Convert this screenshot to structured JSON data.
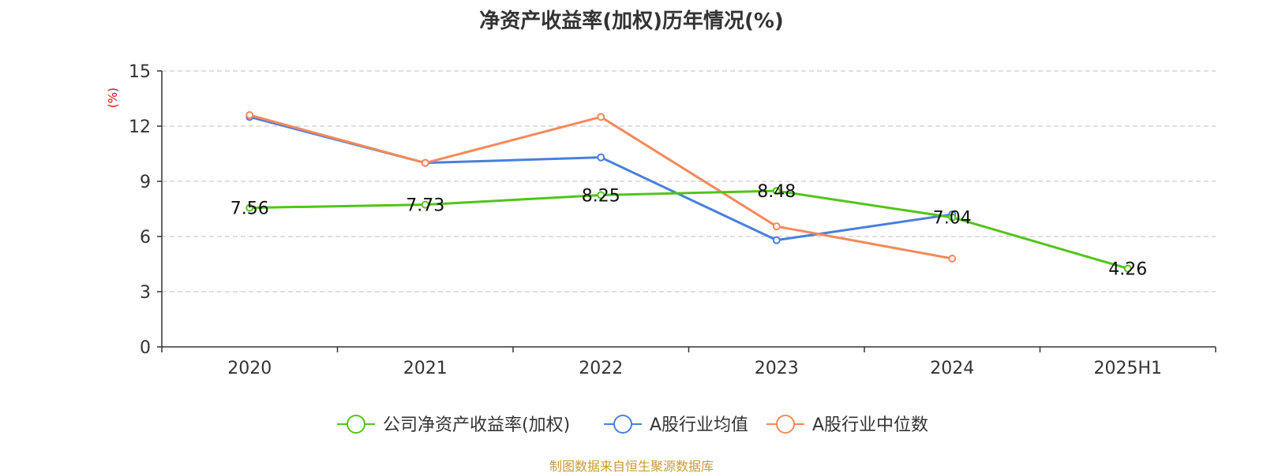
{
  "chart_data": {
    "type": "line",
    "title": "净资产收益率(加权)历年情况(%)",
    "ylabel": "(%)",
    "xlabel": "",
    "categories": [
      "2020",
      "2021",
      "2022",
      "2023",
      "2024",
      "2025H1"
    ],
    "ylim": [
      0,
      15
    ],
    "yticks": [
      0,
      3,
      6,
      9,
      12,
      15
    ],
    "grid": "horizontal-dashed",
    "legend_position": "bottom-center",
    "series": [
      {
        "name": "公司净资产收益率(加权)",
        "color": "#52c41a",
        "values": [
          7.56,
          7.73,
          8.25,
          8.48,
          7.04,
          4.26
        ],
        "labels": [
          "7.56",
          "7.73",
          "8.25",
          "8.48",
          "7.04",
          "4.26"
        ],
        "show_labels": true
      },
      {
        "name": "A股行业均值",
        "color": "#4a7fdc",
        "values": [
          12.5,
          10.0,
          10.3,
          5.8,
          7.2,
          null
        ],
        "show_labels": false
      },
      {
        "name": "A股行业中位数",
        "color": "#f5895a",
        "values": [
          12.6,
          10.0,
          12.5,
          6.55,
          4.8,
          null
        ],
        "show_labels": false
      }
    ]
  },
  "source_text": "制图数据来自恒生聚源数据库"
}
